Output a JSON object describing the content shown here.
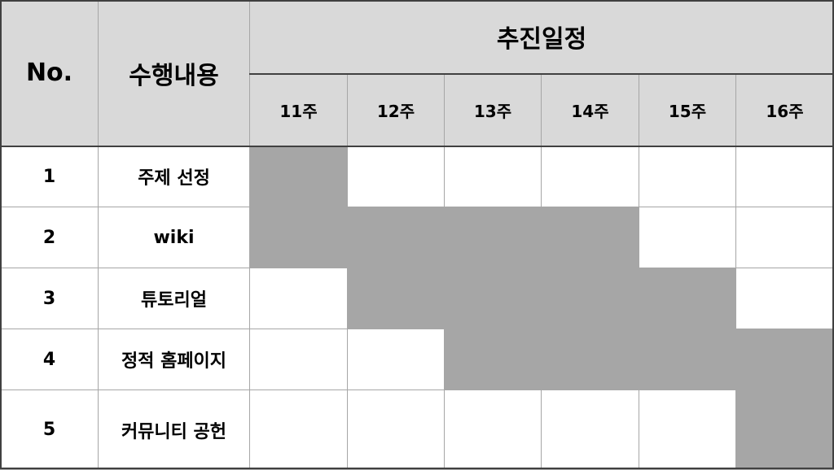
{
  "header": {
    "no_label": "No.",
    "task_label": "수행내용",
    "schedule_label": "추진일정",
    "weeks": [
      "11주",
      "12주",
      "13주",
      "14주",
      "15주",
      "16주"
    ]
  },
  "rows": [
    {
      "no": "1",
      "task": "주제 선정",
      "weeks_active": [
        true,
        false,
        false,
        false,
        false,
        false
      ]
    },
    {
      "no": "2",
      "task": "wiki",
      "weeks_active": [
        true,
        true,
        true,
        true,
        false,
        false
      ]
    },
    {
      "no": "3",
      "task": "튜토리얼",
      "weeks_active": [
        false,
        true,
        true,
        true,
        true,
        false
      ]
    },
    {
      "no": "4",
      "task": "정적 홈페이지",
      "weeks_active": [
        false,
        false,
        true,
        true,
        true,
        true
      ]
    },
    {
      "no": "5",
      "task": "커뮤니티 공헌",
      "weeks_active": [
        false,
        false,
        false,
        false,
        false,
        true
      ]
    }
  ],
  "colors": {
    "header_bg": "#d9d9d9",
    "filled_cell": "#a6a6a6",
    "grid_line": "#a6a6a6",
    "border_dark": "#404040"
  }
}
